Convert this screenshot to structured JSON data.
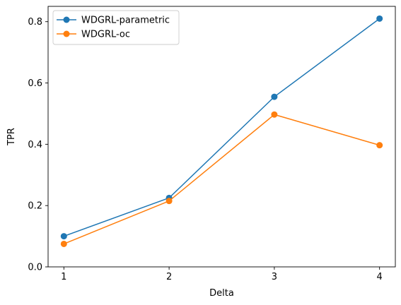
{
  "chart_data": {
    "type": "line",
    "title": "",
    "xlabel": "Delta",
    "ylabel": "TPR",
    "x": [
      1,
      2,
      3,
      4
    ],
    "x_ticks": [
      "1",
      "2",
      "3",
      "4"
    ],
    "y_ticks": [
      "0.0",
      "0.2",
      "0.4",
      "0.6",
      "0.8"
    ],
    "xlim": [
      0.85,
      4.15
    ],
    "ylim": [
      0,
      0.85
    ],
    "grid": false,
    "legend_position": "top-left",
    "markers": "circle",
    "series": [
      {
        "name": "WDGRL-parametric",
        "color": "#1f77b4",
        "values": [
          0.1,
          0.225,
          0.555,
          0.81
        ]
      },
      {
        "name": "WDGRL-oc",
        "color": "#ff7f0e",
        "values": [
          0.075,
          0.215,
          0.497,
          0.397
        ]
      }
    ]
  }
}
